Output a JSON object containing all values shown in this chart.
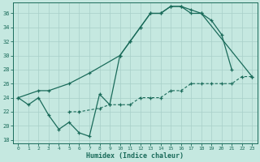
{
  "xlabel": "Humidex (Indice chaleur)",
  "bg_color": "#c5e8e0",
  "grid_color": "#a8cfc8",
  "line_color": "#1a6b5a",
  "x": [
    0,
    1,
    2,
    3,
    4,
    5,
    6,
    7,
    8,
    9,
    10,
    11,
    12,
    13,
    14,
    15,
    16,
    17,
    18,
    19,
    20,
    21,
    22,
    23
  ],
  "line1_x": [
    0,
    1,
    2,
    3,
    4,
    5,
    6,
    7,
    8,
    9,
    10,
    11,
    12,
    13,
    14,
    15,
    16,
    17,
    18,
    19,
    20,
    21
  ],
  "line1_y": [
    24,
    23,
    24,
    21.5,
    19.5,
    20.5,
    19,
    18.5,
    24.5,
    23,
    30,
    32,
    34,
    36,
    36,
    37,
    37,
    36.5,
    36,
    35,
    33,
    28
  ],
  "line2_x": [
    0,
    2,
    3,
    5,
    7,
    10,
    11,
    12,
    13,
    14,
    15,
    16,
    17,
    18,
    23
  ],
  "line2_y": [
    24,
    25,
    25,
    26,
    27.5,
    30,
    32,
    34,
    36,
    36,
    37,
    37,
    36,
    36,
    27
  ],
  "line3_x": [
    5,
    6,
    8,
    9,
    10,
    11,
    12,
    13,
    14,
    15,
    16,
    17,
    18,
    19,
    20,
    21,
    22,
    23
  ],
  "line3_y": [
    22,
    22,
    22.5,
    23,
    23,
    23,
    24,
    24,
    24,
    25,
    25,
    26,
    26,
    26,
    26,
    26,
    27,
    27
  ],
  "ylim": [
    17.5,
    37.5
  ],
  "xlim": [
    -0.5,
    23.5
  ],
  "yticks": [
    18,
    20,
    22,
    24,
    26,
    28,
    30,
    32,
    34,
    36
  ],
  "xticks": [
    0,
    1,
    2,
    3,
    4,
    5,
    6,
    7,
    8,
    9,
    10,
    11,
    12,
    13,
    14,
    15,
    16,
    17,
    18,
    19,
    20,
    21,
    22,
    23
  ]
}
